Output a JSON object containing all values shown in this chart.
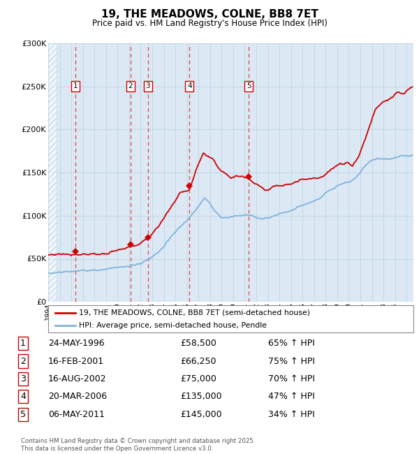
{
  "title": "19, THE MEADOWS, COLNE, BB8 7ET",
  "subtitle": "Price paid vs. HM Land Registry's House Price Index (HPI)",
  "legend_line1": "19, THE MEADOWS, COLNE, BB8 7ET (semi-detached house)",
  "legend_line2": "HPI: Average price, semi-detached house, Pendle",
  "footer": "Contains HM Land Registry data © Crown copyright and database right 2025.\nThis data is licensed under the Open Government Licence v3.0.",
  "hpi_color": "#7fb3d9",
  "price_color": "#cc0000",
  "bg_color": "#dce9f5",
  "hatch_color": "#b0c8e0",
  "grid_color": "#b8cfe0",
  "dashed_color": "#e05050",
  "ylim": [
    0,
    300000
  ],
  "ytick_vals": [
    0,
    50000,
    100000,
    150000,
    200000,
    250000,
    300000
  ],
  "ytick_labels": [
    "£0",
    "£50K",
    "£100K",
    "£150K",
    "£200K",
    "£250K",
    "£300K"
  ],
  "xlim_start": 1994.0,
  "xlim_end": 2025.6,
  "sale_dates": [
    1996.37,
    2001.12,
    2002.62,
    2006.22,
    2011.34
  ],
  "sale_prices": [
    58500,
    66250,
    75000,
    135000,
    145000
  ],
  "sale_labels": [
    "1",
    "2",
    "3",
    "4",
    "5"
  ],
  "sale_date_strs": [
    "24-MAY-1996",
    "16-FEB-2001",
    "16-AUG-2002",
    "20-MAR-2006",
    "06-MAY-2011"
  ],
  "sale_price_labels": [
    "£58,500",
    "£66,250",
    "£75,000",
    "£135,000",
    "£145,000"
  ],
  "sale_pct_labels": [
    "65% ↑ HPI",
    "75% ↑ HPI",
    "70% ↑ HPI",
    "47% ↑ HPI",
    "34% ↑ HPI"
  ]
}
